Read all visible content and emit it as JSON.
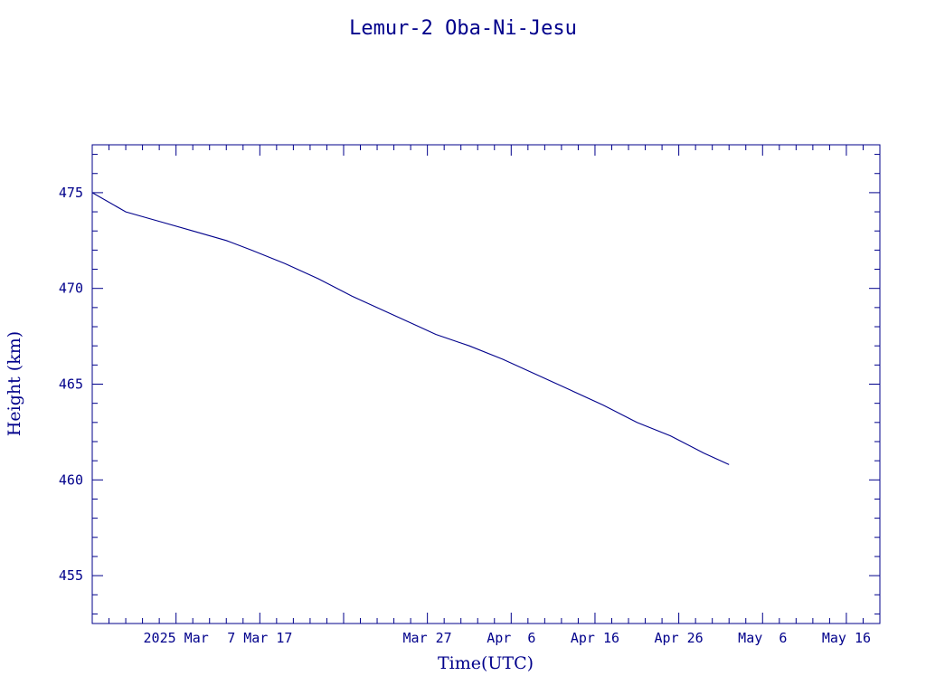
{
  "chart_data": {
    "type": "line",
    "title": "Lemur-2 Oba-Ni-Jesu",
    "xlabel": "Time(UTC)",
    "ylabel": "Height (km)",
    "xlim": [
      "2025-02-15",
      "2025-05-20"
    ],
    "ylim": [
      452.5,
      477.5
    ],
    "x_major_ticks": [
      "2025-02-25",
      "2025-03-07",
      "2025-03-17",
      "2025-03-27",
      "2025-04-06",
      "2025-04-16",
      "2025-04-26",
      "2025-05-06",
      "2025-05-16"
    ],
    "x_tick_labels": [
      "2025 Mar",
      "7 Mar 17",
      "",
      "Mar 27",
      "Apr  6",
      "Apr 16",
      "Apr 26",
      "May  6",
      "May 16"
    ],
    "y_ticks": [
      455,
      460,
      465,
      470,
      475
    ],
    "y_tick_labels": [
      "455",
      "460",
      "465",
      "470",
      "475"
    ],
    "grid": false,
    "series": [
      {
        "color": "#00008b",
        "x": [
          "2025-02-15",
          "2025-02-19",
          "2025-02-23",
          "2025-02-27",
          "2025-03-03",
          "2025-03-06",
          "2025-03-10",
          "2025-03-14",
          "2025-03-18",
          "2025-03-22",
          "2025-03-26",
          "2025-03-28",
          "2025-04-01",
          "2025-04-05",
          "2025-04-09",
          "2025-04-13",
          "2025-04-17",
          "2025-04-21",
          "2025-04-25",
          "2025-04-29",
          "2025-05-02"
        ],
        "y": [
          475.0,
          474.0,
          473.5,
          473.0,
          472.5,
          472.0,
          471.3,
          470.5,
          469.6,
          468.8,
          468.0,
          467.6,
          467.0,
          466.3,
          465.5,
          464.7,
          463.9,
          463.0,
          462.3,
          461.4,
          460.8
        ]
      }
    ]
  }
}
